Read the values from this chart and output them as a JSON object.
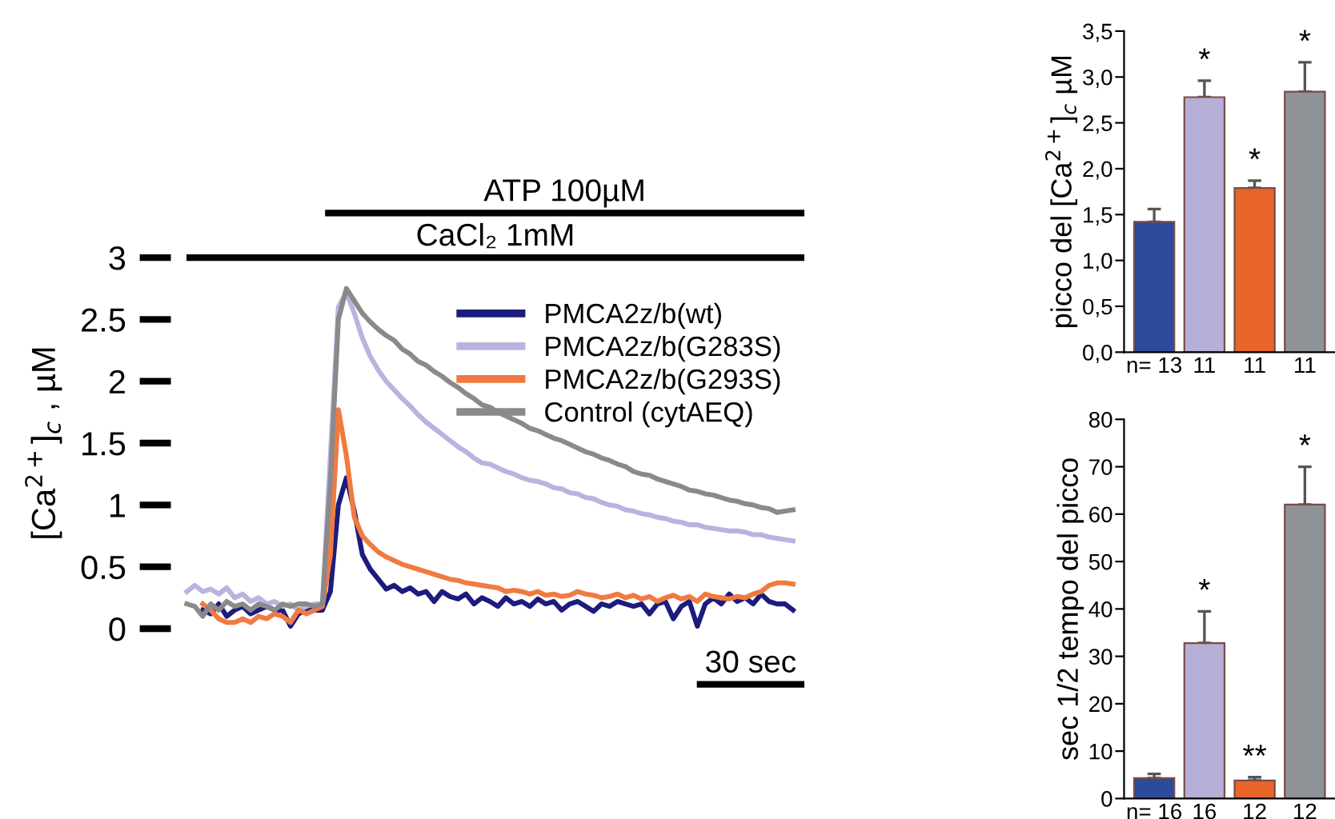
{
  "chart_data": [
    {
      "type": "line",
      "ylabel": "[Ca$^{2+}$]$_{c}$ , µM",
      "tick_labels": "y",
      "legend": "top right",
      "annotations": [
        "ATP 100µM",
        "CaCl₂ 1mM",
        "30 sec"
      ],
      "categories": [
        null,
        null,
        null,
        null,
        null,
        null,
        null,
        null,
        null,
        null,
        null,
        null,
        null,
        null,
        null,
        null,
        null,
        null,
        null,
        null,
        null,
        null,
        null,
        null,
        null,
        null,
        null,
        null,
        null,
        null,
        null,
        null,
        null,
        null,
        null,
        null,
        null,
        null,
        null,
        null,
        null,
        null,
        null,
        null,
        null,
        null,
        null,
        null,
        null,
        null,
        null,
        null,
        null,
        null,
        null,
        null,
        null,
        null,
        null,
        null,
        null,
        null,
        null,
        null,
        null,
        null,
        null,
        null,
        null,
        null,
        null,
        null,
        null,
        null,
        null,
        null,
        null
      ],
      "ylim": [
        0,
        3
      ],
      "yticks": [
        0,
        0.5,
        1,
        1.5,
        2,
        2.5,
        3
      ],
      "series": [
        {
          "name": "PMCA2z/b(wt)",
          "color": "#1c1c7e",
          "values": [
            null,
            null,
            0.15,
            0.12,
            0.2,
            0.1,
            0.15,
            0.18,
            0.12,
            0.15,
            0.18,
            0.15,
            0.15,
            0.02,
            0.12,
            0.15,
            0.15,
            0.15,
            0.3,
            1.0,
            1.22,
            0.95,
            0.6,
            0.48,
            0.4,
            0.32,
            0.35,
            0.3,
            0.33,
            0.28,
            0.3,
            0.22,
            0.3,
            0.26,
            0.24,
            0.28,
            0.2,
            0.25,
            0.22,
            0.18,
            0.25,
            0.2,
            0.22,
            0.18,
            0.24,
            0.2,
            0.22,
            0.15,
            0.2,
            0.22,
            0.18,
            0.14,
            0.2,
            0.18,
            0.22,
            0.2,
            0.18,
            0.2,
            0.12,
            0.2,
            0.22,
            0.08,
            0.18,
            0.22,
            0.02,
            0.2,
            0.25,
            0.2,
            0.28,
            0.22,
            0.25,
            0.2,
            0.28,
            0.22,
            0.2,
            0.2,
            0.15
          ]
        },
        {
          "name": "PMCA2z/b(G283S)",
          "color": "#b8b4e0",
          "values": [
            0.3,
            0.35,
            0.3,
            0.32,
            0.28,
            0.33,
            0.25,
            0.28,
            0.22,
            0.25,
            0.2,
            0.22,
            0.18,
            0.2,
            0.15,
            0.18,
            0.2,
            0.2,
            1.4,
            2.6,
            2.72,
            2.55,
            2.35,
            2.2,
            2.09,
            2.0,
            1.93,
            1.86,
            1.8,
            1.73,
            1.67,
            1.62,
            1.57,
            1.52,
            1.47,
            1.43,
            1.38,
            1.34,
            1.33,
            1.3,
            1.27,
            1.25,
            1.22,
            1.2,
            1.19,
            1.17,
            1.14,
            1.13,
            1.1,
            1.09,
            1.06,
            1.05,
            1.02,
            1.0,
            0.99,
            0.96,
            0.95,
            0.93,
            0.92,
            0.9,
            0.89,
            0.87,
            0.86,
            0.84,
            0.84,
            0.82,
            0.81,
            0.8,
            0.79,
            0.79,
            0.78,
            0.76,
            0.76,
            0.74,
            0.73,
            0.72,
            0.71
          ]
        },
        {
          "name": "PMCA2z/b(G293S)",
          "color": "#f07a40",
          "values": [
            null,
            null,
            0.2,
            0.15,
            0.08,
            0.05,
            0.05,
            0.08,
            0.05,
            0.1,
            0.08,
            0.12,
            0.1,
            0.05,
            0.15,
            0.12,
            0.15,
            0.18,
            0.6,
            1.77,
            1.4,
            0.9,
            0.75,
            0.68,
            0.62,
            0.58,
            0.55,
            0.52,
            0.5,
            0.48,
            0.46,
            0.44,
            0.42,
            0.4,
            0.39,
            0.37,
            0.36,
            0.35,
            0.34,
            0.33,
            0.3,
            0.31,
            0.3,
            0.28,
            0.3,
            0.27,
            0.28,
            0.26,
            0.27,
            0.3,
            0.28,
            0.27,
            0.25,
            0.26,
            0.28,
            0.25,
            0.27,
            0.24,
            0.26,
            0.22,
            0.25,
            0.27,
            0.24,
            0.26,
            0.22,
            0.28,
            0.26,
            0.25,
            0.24,
            0.26,
            0.25,
            0.28,
            0.3,
            0.35,
            0.37,
            0.37,
            0.36
          ]
        },
        {
          "name": "Control (cytAEQ)",
          "color": "#8a8a8a",
          "values": [
            0.2,
            0.18,
            0.1,
            0.2,
            0.15,
            0.22,
            0.18,
            0.2,
            0.15,
            0.2,
            0.18,
            0.15,
            0.2,
            0.18,
            0.2,
            0.2,
            0.18,
            0.2,
            1.2,
            2.5,
            2.75,
            2.65,
            2.55,
            2.48,
            2.42,
            2.37,
            2.33,
            2.26,
            2.22,
            2.16,
            2.13,
            2.08,
            2.04,
            1.99,
            1.95,
            1.9,
            1.86,
            1.81,
            1.79,
            1.75,
            1.72,
            1.69,
            1.66,
            1.62,
            1.6,
            1.57,
            1.54,
            1.52,
            1.49,
            1.46,
            1.43,
            1.41,
            1.38,
            1.36,
            1.33,
            1.31,
            1.27,
            1.25,
            1.24,
            1.21,
            1.19,
            1.17,
            1.15,
            1.12,
            1.11,
            1.09,
            1.08,
            1.06,
            1.04,
            1.03,
            1.01,
            1.0,
            0.98,
            0.97,
            0.94,
            0.95,
            0.96
          ]
        }
      ]
    },
    {
      "type": "bar",
      "ylabel": "picco del [Ca$^{2+}$]$_{c}$ µM",
      "categories": [
        "n= 13",
        "11",
        "11",
        "11"
      ],
      "values": [
        1.42,
        2.78,
        1.79,
        2.84
      ],
      "colors": [
        "#2e4a9a",
        "#b6b0d8",
        "#e8652a",
        "#8f9398"
      ],
      "errors": [
        [
          1.42,
          1.56
        ],
        [
          2.78,
          2.96
        ],
        [
          1.79,
          1.87
        ],
        [
          2.84,
          3.16
        ]
      ],
      "ylim": [
        0,
        3.5
      ],
      "yticks": [
        {
          "value": 0,
          "label": "0,0"
        },
        {
          "value": 0.5,
          "label": "0,5"
        },
        {
          "value": 1,
          "label": "1,0"
        },
        {
          "value": 1.5,
          "label": "1,5"
        },
        {
          "value": 2,
          "label": "2,0"
        },
        {
          "value": 2.5,
          "label": "2,5"
        },
        {
          "value": 3,
          "label": "3,0"
        },
        {
          "value": 3.5,
          "label": "3,5"
        }
      ],
      "annotations": [
        "*",
        "*",
        "*"
      ]
    },
    {
      "type": "bar",
      "ylabel": "sec 1/2 tempo del picco",
      "categories": [
        "n= 16",
        "16",
        "12",
        "12"
      ],
      "values": [
        4.3,
        32.8,
        3.8,
        62
      ],
      "colors": [
        "#2e4a9a",
        "#b6b0d8",
        "#e8652a",
        "#8f9398"
      ],
      "errors": [
        [
          4.3,
          5.2
        ],
        [
          32.8,
          39.5
        ],
        [
          3.8,
          4.5
        ],
        [
          62,
          70
        ]
      ],
      "ylim": [
        0,
        80
      ],
      "yticks": [
        0,
        10,
        20,
        30,
        40,
        50,
        60,
        70,
        80
      ],
      "annotations": [
        "*",
        "**",
        "*"
      ]
    }
  ]
}
